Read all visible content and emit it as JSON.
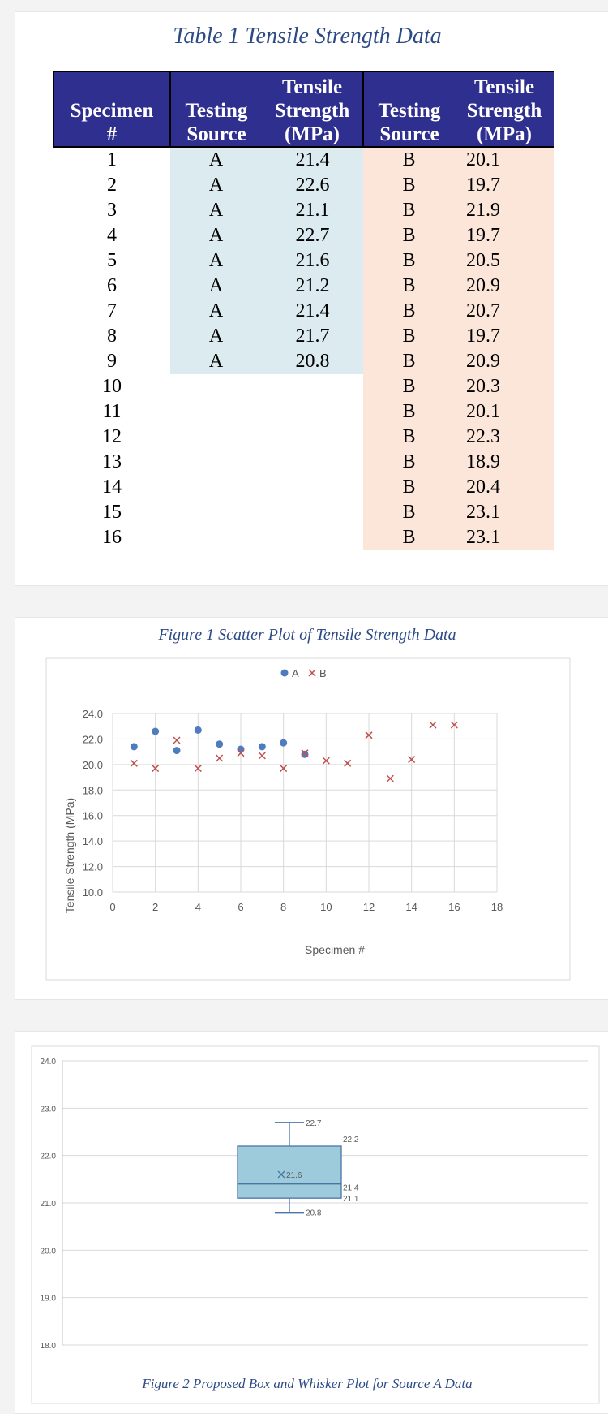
{
  "table": {
    "title": "Table 1 Tensile Strength Data",
    "headers": {
      "specimen": [
        "Specimen",
        "#"
      ],
      "source_a": [
        "Testing",
        "Source"
      ],
      "strength_a": [
        "Tensile",
        "Strength",
        "(MPa)"
      ],
      "source_b": [
        "Testing",
        "Source"
      ],
      "strength_b": [
        "Tensile",
        "Strength",
        "(MPa)"
      ]
    },
    "rows": [
      {
        "specimen": "1",
        "a_source": "A",
        "a_strength": "21.4",
        "b_source": "B",
        "b_strength": "20.1"
      },
      {
        "specimen": "2",
        "a_source": "A",
        "a_strength": "22.6",
        "b_source": "B",
        "b_strength": "19.7"
      },
      {
        "specimen": "3",
        "a_source": "A",
        "a_strength": "21.1",
        "b_source": "B",
        "b_strength": "21.9"
      },
      {
        "specimen": "4",
        "a_source": "A",
        "a_strength": "22.7",
        "b_source": "B",
        "b_strength": "19.7"
      },
      {
        "specimen": "5",
        "a_source": "A",
        "a_strength": "21.6",
        "b_source": "B",
        "b_strength": "20.5"
      },
      {
        "specimen": "6",
        "a_source": "A",
        "a_strength": "21.2",
        "b_source": "B",
        "b_strength": "20.9"
      },
      {
        "specimen": "7",
        "a_source": "A",
        "a_strength": "21.4",
        "b_source": "B",
        "b_strength": "20.7"
      },
      {
        "specimen": "8",
        "a_source": "A",
        "a_strength": "21.7",
        "b_source": "B",
        "b_strength": "19.7"
      },
      {
        "specimen": "9",
        "a_source": "A",
        "a_strength": "20.8",
        "b_source": "B",
        "b_strength": "20.9"
      },
      {
        "specimen": "10",
        "a_source": "",
        "a_strength": "",
        "b_source": "B",
        "b_strength": "20.3"
      },
      {
        "specimen": "11",
        "a_source": "",
        "a_strength": "",
        "b_source": "B",
        "b_strength": "20.1"
      },
      {
        "specimen": "12",
        "a_source": "",
        "a_strength": "",
        "b_source": "B",
        "b_strength": "22.3"
      },
      {
        "specimen": "13",
        "a_source": "",
        "a_strength": "",
        "b_source": "B",
        "b_strength": "18.9"
      },
      {
        "specimen": "14",
        "a_source": "",
        "a_strength": "",
        "b_source": "B",
        "b_strength": "20.4"
      },
      {
        "specimen": "15",
        "a_source": "",
        "a_strength": "",
        "b_source": "B",
        "b_strength": "23.1"
      },
      {
        "specimen": "16",
        "a_source": "",
        "a_strength": "",
        "b_source": "B",
        "b_strength": "23.1"
      }
    ],
    "colors": {
      "header_bg": "#2f2f8f",
      "a_bg": "#dcebf0",
      "b_bg": "#fce6da",
      "title": "#2c4a86"
    }
  },
  "chart_data": [
    {
      "type": "scatter",
      "title": "Figure 1 Scatter Plot of Tensile Strength Data",
      "xlabel": "Specimen #",
      "ylabel": "Tensile Strength (MPa)",
      "xlim": [
        0,
        18
      ],
      "ylim": [
        10.0,
        24.0
      ],
      "xticks": [
        "0",
        "2",
        "4",
        "6",
        "8",
        "10",
        "12",
        "14",
        "16",
        "18"
      ],
      "yticks": [
        "10.0",
        "12.0",
        "14.0",
        "16.0",
        "18.0",
        "20.0",
        "22.0",
        "24.0"
      ],
      "grid": true,
      "legend": "top-center",
      "series": [
        {
          "name": "A",
          "marker": "circle",
          "color": "#4f7bbf",
          "x": [
            1,
            2,
            3,
            4,
            5,
            6,
            7,
            8,
            9
          ],
          "y": [
            21.4,
            22.6,
            21.1,
            22.7,
            21.6,
            21.2,
            21.4,
            21.7,
            20.8
          ]
        },
        {
          "name": "B",
          "marker": "x",
          "color": "#c0504d",
          "x": [
            1,
            2,
            3,
            4,
            5,
            6,
            7,
            8,
            9,
            10,
            11,
            12,
            13,
            14,
            15,
            16
          ],
          "y": [
            20.1,
            19.7,
            21.9,
            19.7,
            20.5,
            20.9,
            20.7,
            19.7,
            20.9,
            20.3,
            20.1,
            22.3,
            18.9,
            20.4,
            23.1,
            23.1
          ]
        }
      ]
    },
    {
      "type": "box",
      "title": "Figure 2 Proposed Box and Whisker Plot for Source A Data",
      "ylim": [
        18.0,
        24.0
      ],
      "yticks": [
        "18.0",
        "19.0",
        "20.0",
        "21.0",
        "22.0",
        "23.0",
        "24.0"
      ],
      "grid": true,
      "box": {
        "min": 20.8,
        "q1": 21.1,
        "median": 21.4,
        "mean": 21.6,
        "q3": 22.2,
        "max": 22.7,
        "color": "#9dcbdc",
        "stroke": "#4a74a8"
      },
      "labels": {
        "max": "22.7",
        "q3": "22.2",
        "mean": "21.6",
        "median": "21.4",
        "q1": "21.1",
        "min": "20.8"
      }
    }
  ]
}
